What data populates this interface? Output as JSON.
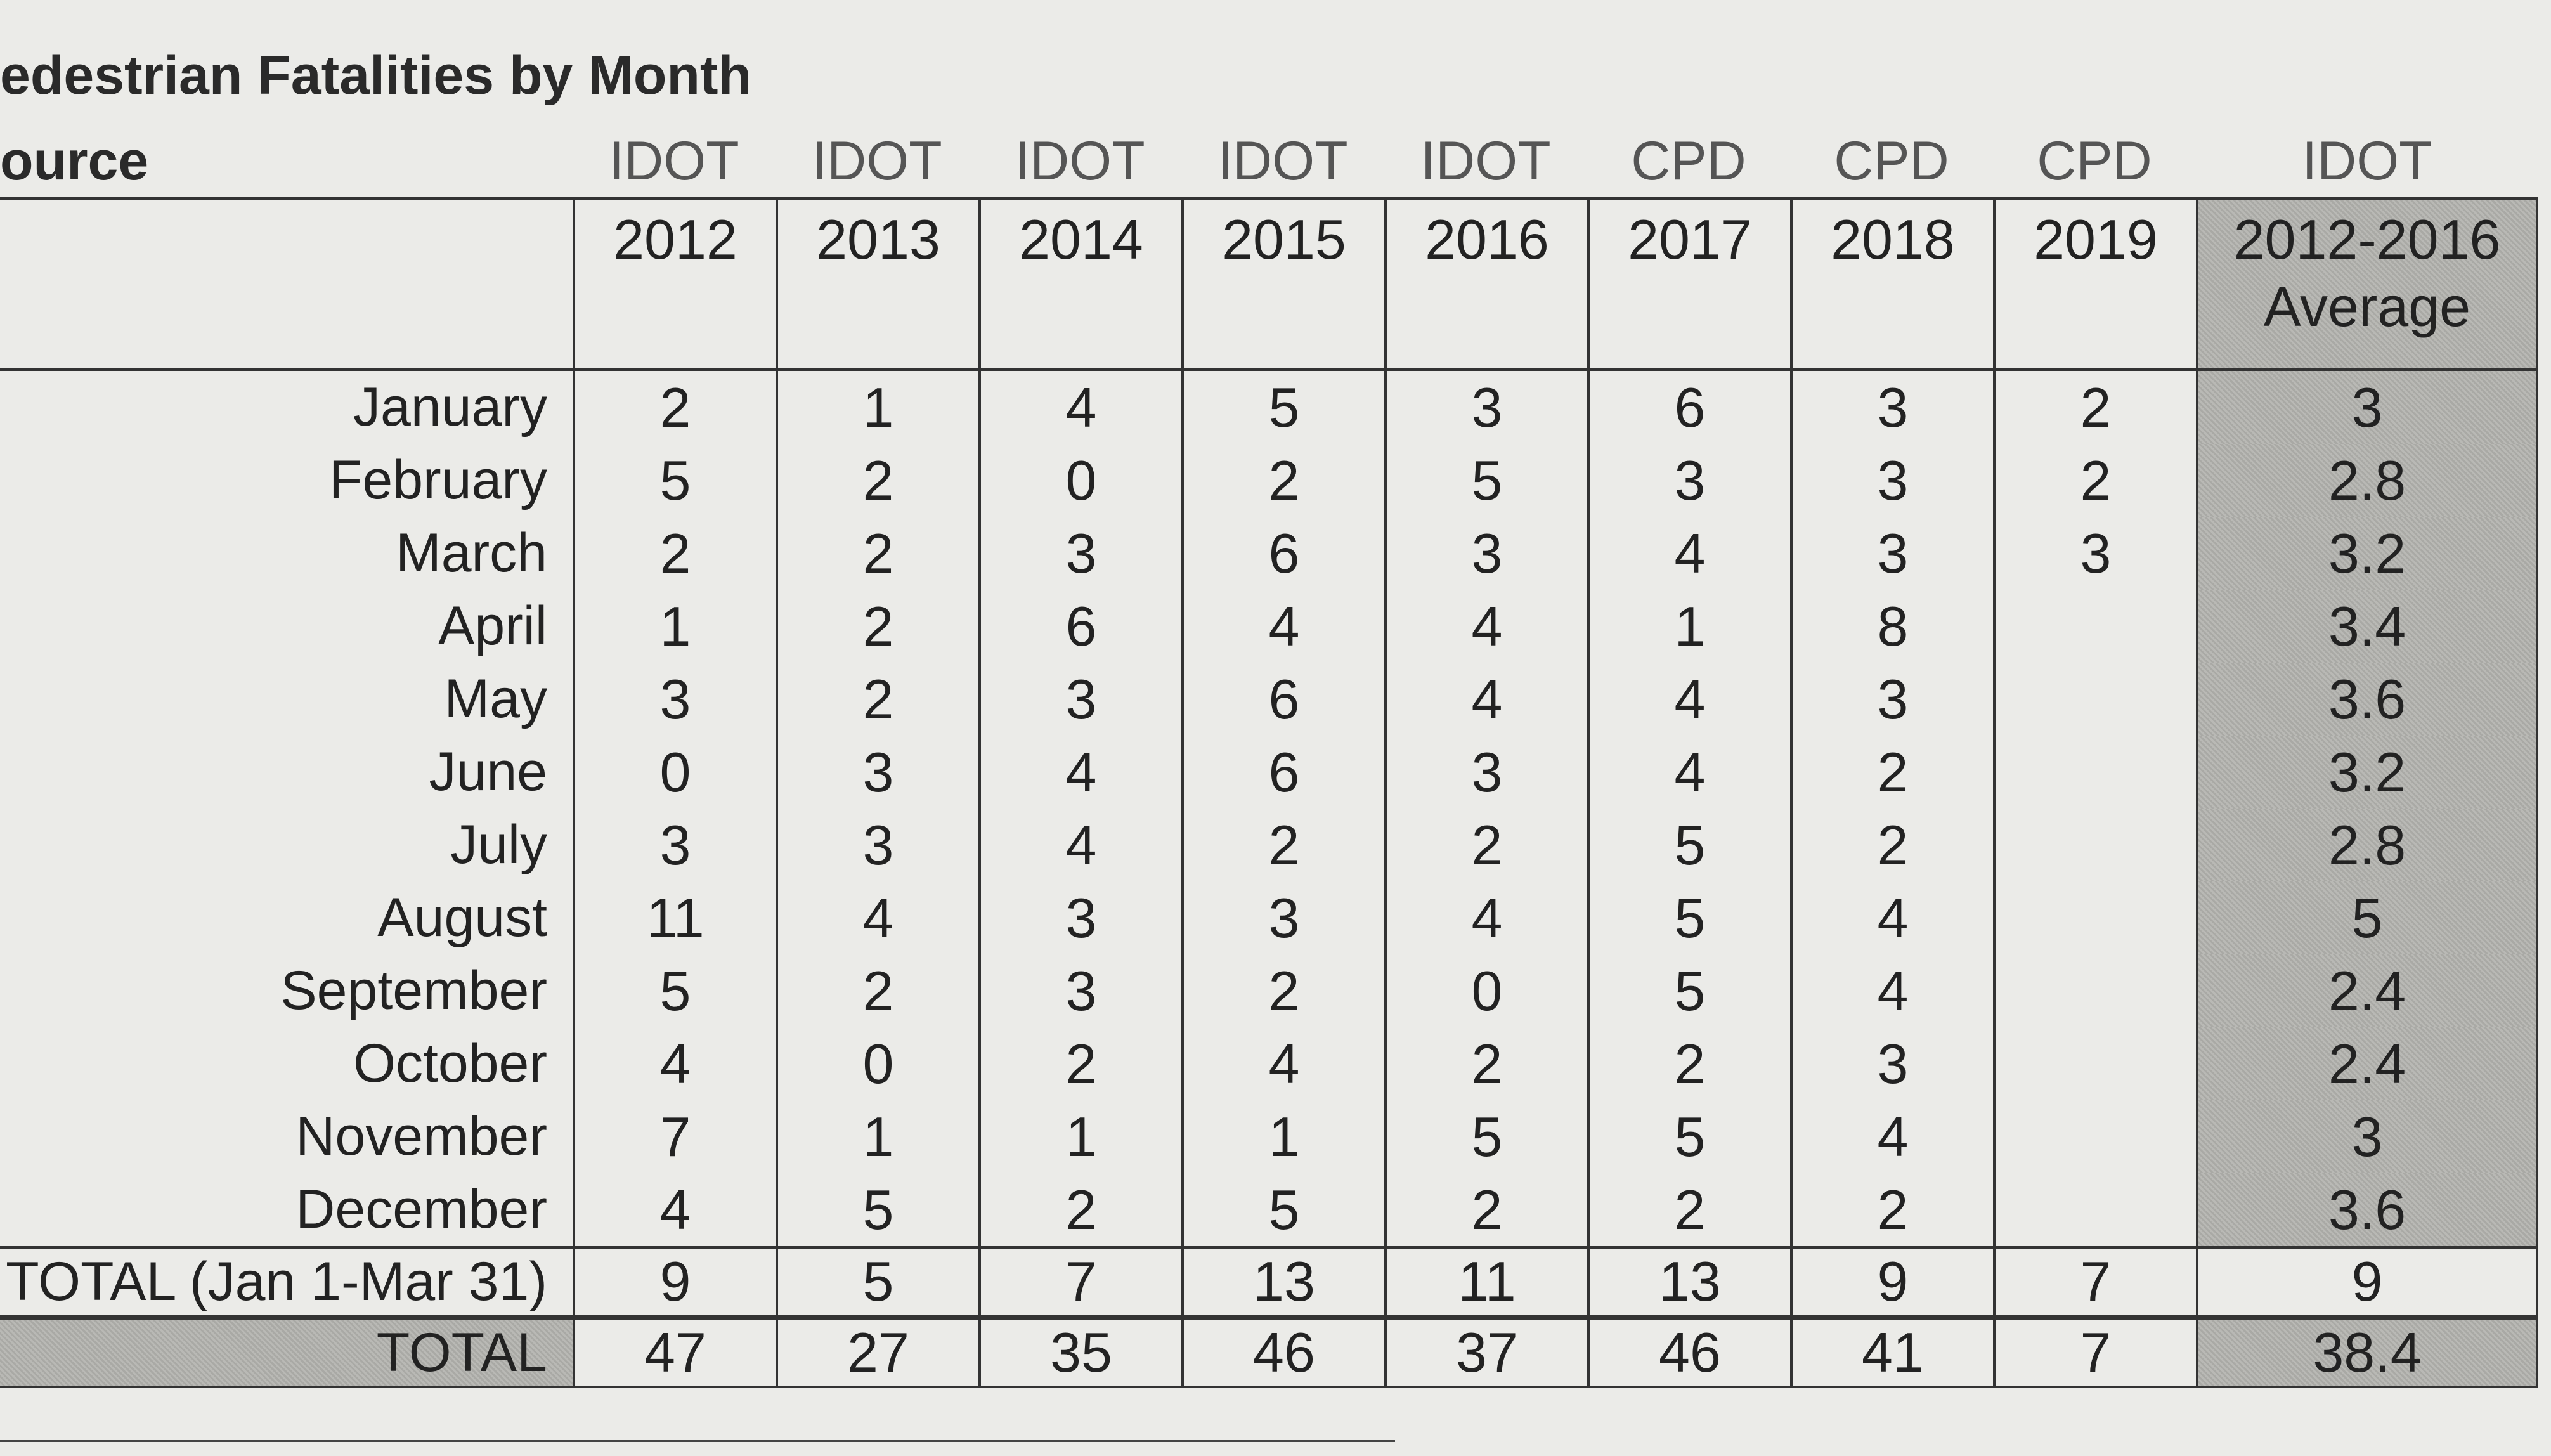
{
  "header": {
    "title": "edestrian Fatalities by Month",
    "source_label": "ource"
  },
  "table": {
    "columns": [
      {
        "source": "IDOT",
        "label": "2012"
      },
      {
        "source": "IDOT",
        "label": "2013"
      },
      {
        "source": "IDOT",
        "label": "2014"
      },
      {
        "source": "IDOT",
        "label": "2015"
      },
      {
        "source": "IDOT",
        "label": "2016"
      },
      {
        "source": "CPD",
        "label": "2017"
      },
      {
        "source": "CPD",
        "label": "2018"
      },
      {
        "source": "CPD",
        "label": "2019"
      },
      {
        "source": "IDOT",
        "label": "2012-2016\nAverage"
      }
    ],
    "rows": [
      {
        "label": "January",
        "values": [
          2,
          1,
          4,
          5,
          3,
          6,
          3,
          2,
          3
        ]
      },
      {
        "label": "February",
        "values": [
          5,
          2,
          0,
          2,
          5,
          3,
          3,
          2,
          2.8
        ]
      },
      {
        "label": "March",
        "values": [
          2,
          2,
          3,
          6,
          3,
          4,
          3,
          3,
          3.2
        ]
      },
      {
        "label": "April",
        "values": [
          1,
          2,
          6,
          4,
          4,
          1,
          8,
          null,
          3.4
        ]
      },
      {
        "label": "May",
        "values": [
          3,
          2,
          3,
          6,
          4,
          4,
          3,
          null,
          3.6
        ]
      },
      {
        "label": "June",
        "values": [
          0,
          3,
          4,
          6,
          3,
          4,
          2,
          null,
          3.2
        ]
      },
      {
        "label": "July",
        "values": [
          3,
          3,
          4,
          2,
          2,
          5,
          2,
          null,
          2.8
        ]
      },
      {
        "label": "August",
        "values": [
          11,
          4,
          3,
          3,
          4,
          5,
          4,
          null,
          5
        ]
      },
      {
        "label": "September",
        "values": [
          5,
          2,
          3,
          2,
          0,
          5,
          4,
          null,
          2.4
        ]
      },
      {
        "label": "October",
        "values": [
          4,
          0,
          2,
          4,
          2,
          2,
          3,
          null,
          2.4
        ]
      },
      {
        "label": "November",
        "values": [
          7,
          1,
          1,
          1,
          5,
          5,
          4,
          null,
          3
        ]
      },
      {
        "label": "December",
        "values": [
          4,
          5,
          2,
          5,
          2,
          2,
          2,
          null,
          3.6
        ]
      }
    ],
    "totals": [
      {
        "label": "TOTAL (Jan 1-Mar 31)",
        "values": [
          9,
          5,
          7,
          13,
          11,
          13,
          9,
          7,
          9
        ]
      },
      {
        "label": "TOTAL",
        "values": [
          47,
          27,
          35,
          46,
          37,
          46,
          41,
          7,
          38.4
        ]
      }
    ]
  }
}
